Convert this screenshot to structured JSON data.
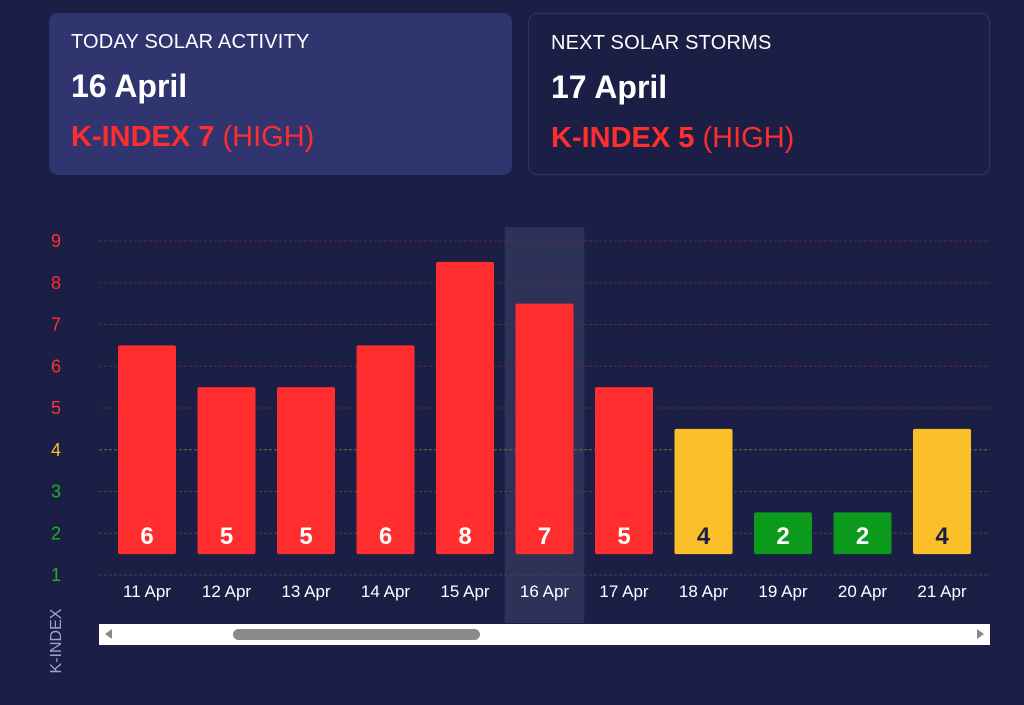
{
  "today": {
    "label": "TODAY SOLAR ACTIVITY",
    "date": "16 April",
    "kindex_label": "K-INDEX 7",
    "level": "(HIGH)"
  },
  "next": {
    "label": "NEXT SOLAR STORMS",
    "date": "17 April",
    "kindex_label": "K-INDEX 5",
    "level": "(HIGH)"
  },
  "colors": {
    "background": "#1c1f45",
    "high": "#ff2d2d",
    "moderate": "#fbbf2a",
    "low": "#0c9a1c",
    "highlight": "#2e3258",
    "tick_high": "#ff3030",
    "tick_moderate": "#f0c030",
    "tick_low": "#22b022"
  },
  "chart_data": {
    "type": "bar",
    "categories": [
      "11 Apr",
      "12 Apr",
      "13 Apr",
      "14 Apr",
      "15 Apr",
      "16 Apr",
      "17 Apr",
      "18 Apr",
      "19 Apr",
      "20 Apr",
      "21 Apr"
    ],
    "values": [
      6,
      5,
      5,
      6,
      8,
      7,
      5,
      4,
      2,
      2,
      4
    ],
    "highlighted_category": "16 Apr",
    "yticks": [
      1,
      2,
      3,
      4,
      5,
      6,
      7,
      8,
      9
    ],
    "ylim": [
      1,
      9
    ],
    "ylabel": "K-INDEX",
    "xlabel": "",
    "grid": true,
    "legend": "none"
  }
}
